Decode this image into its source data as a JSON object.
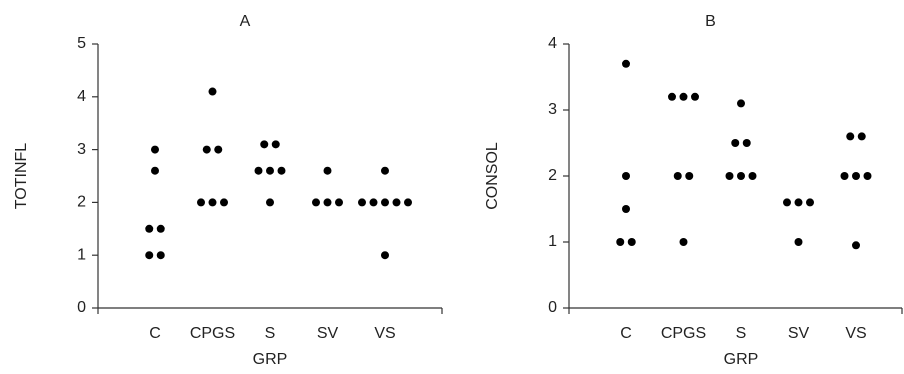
{
  "chart_data": [
    {
      "type": "strip",
      "title": "A",
      "xlabel": "GRP",
      "ylabel": "TOTINFL",
      "categories": [
        "C",
        "CPGS",
        "S",
        "SV",
        "VS"
      ],
      "values": [
        [
          3,
          2.6,
          1.5,
          1.5,
          1,
          1
        ],
        [
          4.1,
          3,
          3,
          2,
          2,
          2
        ],
        [
          3.1,
          3.1,
          2.6,
          2.6,
          2.6,
          2
        ],
        [
          2.6,
          2,
          2,
          2
        ],
        [
          2.6,
          2,
          2,
          2,
          2,
          2,
          1
        ]
      ],
      "color": "#000000",
      "ylim": [
        0,
        5
      ],
      "yticks": [
        0,
        1,
        2,
        3,
        4,
        5
      ]
    },
    {
      "type": "strip",
      "title": "B",
      "xlabel": "GRP",
      "ylabel": "CONSOL",
      "categories": [
        "C",
        "CPGS",
        "S",
        "SV",
        "VS"
      ],
      "values": [
        [
          3.7,
          2,
          1.5,
          1,
          1
        ],
        [
          3.2,
          3.2,
          3.2,
          2,
          2,
          1
        ],
        [
          3.1,
          2.5,
          2.5,
          2,
          2,
          2
        ],
        [
          1.6,
          1.6,
          1.6,
          1
        ],
        [
          2.6,
          2.6,
          2,
          2,
          2,
          0.95
        ]
      ],
      "color": "#000000",
      "ylim": [
        0,
        4
      ],
      "yticks": [
        0,
        1,
        2,
        3,
        4
      ]
    }
  ]
}
